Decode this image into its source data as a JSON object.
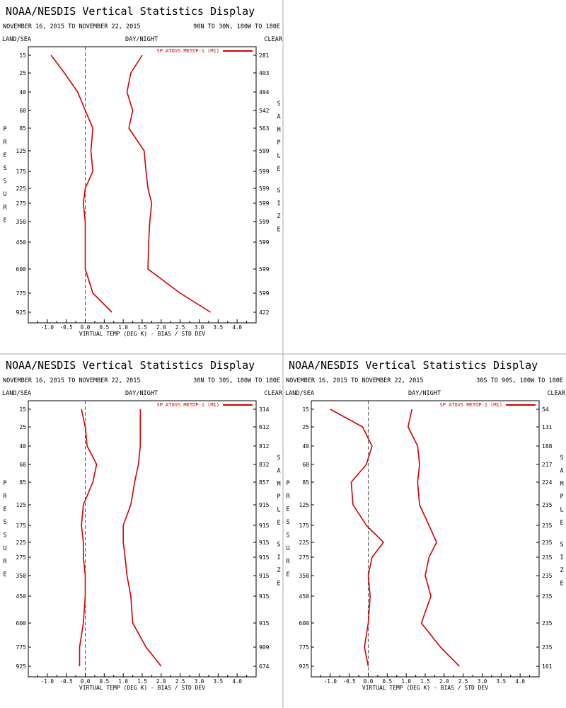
{
  "chart_data": [
    {
      "type": "line",
      "title": "NOAA/NESDIS Vertical Statistics Display",
      "date_range": "NOVEMBER 16, 2015 TO NOVEMBER 22, 2015",
      "region": "90N TO 30N, 180W TO 180E",
      "corner_labels": {
        "left": "LAND/SEA",
        "center": "DAY/NIGHT",
        "right": "CLEAR"
      },
      "left_axis_label": "PRESSURE",
      "right_axis_label": "SAMPLE SIZE",
      "xlabel": "VIRTUAL TEMP (DEG K) - BIAS / STD DEV",
      "xlim": [
        -1.5,
        4.5
      ],
      "xticks": [
        "-1.0",
        "-0.5",
        "0.0",
        "0.5",
        "1.0",
        "1.5",
        "2.0",
        "2.5",
        "3.0",
        "3.5",
        "4.0"
      ],
      "legend": "SP ATOVS METOP-1 (M1)",
      "legend_position": "top-right",
      "line_color": "#d40000",
      "pressure_levels": [
        "15",
        "25",
        "40",
        "60",
        "85",
        "125",
        "175",
        "225",
        "275",
        "350",
        "450",
        "600",
        "775",
        "925"
      ],
      "sample_size": [
        "281",
        "403",
        "494",
        "542",
        "563",
        "599",
        "599",
        "599",
        "599",
        "599",
        "599",
        "599",
        "599",
        "422"
      ],
      "series": [
        {
          "values": [
            -0.9,
            -0.55,
            -0.2,
            0.0,
            0.2,
            0.15,
            0.2,
            0.0,
            -0.05,
            0.0,
            0.0,
            0.0,
            0.2,
            0.7
          ]
        },
        {
          "values": [
            1.5,
            1.2,
            1.1,
            1.25,
            1.15,
            1.55,
            1.6,
            1.65,
            1.75,
            1.7,
            1.67,
            1.65,
            2.5,
            3.3
          ]
        }
      ]
    },
    {
      "type": "line",
      "title": "NOAA/NESDIS Vertical Statistics Display",
      "date_range": "NOVEMBER 16, 2015 TO NOVEMBER 22, 2015",
      "region": "30N TO 30S, 180W TO 180E",
      "corner_labels": {
        "left": "LAND/SEA",
        "center": "DAY/NIGHT",
        "right": "CLEAR"
      },
      "left_axis_label": "PRESSURE",
      "right_axis_label": "SAMPLE SIZE",
      "xlabel": "VIRTUAL TEMP (DEG K) - BIAS / STD DEV",
      "xlim": [
        -1.5,
        4.5
      ],
      "xticks": [
        "-1.0",
        "-0.5",
        "0.0",
        "0.5",
        "1.0",
        "1.5",
        "2.0",
        "2.5",
        "3.0",
        "3.5",
        "4.0"
      ],
      "legend": "SP ATOVS METOP-1 (M1)",
      "legend_position": "top-right",
      "line_color": "#d40000",
      "pressure_levels": [
        "15",
        "25",
        "40",
        "60",
        "85",
        "125",
        "175",
        "225",
        "275",
        "350",
        "450",
        "600",
        "775",
        "925"
      ],
      "sample_size": [
        "314",
        "612",
        "812",
        "832",
        "857",
        "915",
        "915",
        "915",
        "915",
        "915",
        "915",
        "915",
        "909",
        "674"
      ],
      "series": [
        {
          "values": [
            -0.1,
            0.0,
            0.05,
            0.3,
            0.2,
            -0.05,
            -0.1,
            -0.05,
            -0.05,
            0.0,
            0.0,
            -0.05,
            -0.15,
            -0.15
          ]
        },
        {
          "values": [
            1.45,
            1.45,
            1.45,
            1.4,
            1.3,
            1.2,
            1.0,
            1.0,
            1.05,
            1.1,
            1.2,
            1.25,
            1.6,
            2.0
          ]
        }
      ]
    },
    {
      "type": "line",
      "title": "NOAA/NESDIS Vertical Statistics Display",
      "date_range": "NOVEMBER 16, 2015 TO NOVEMBER 22, 2015",
      "region": "30S TO 90S, 180W TO 180E",
      "corner_labels": {
        "left": "LAND/SEA",
        "center": "DAY/NIGHT",
        "right": "CLEAR"
      },
      "left_axis_label": "PRESSURE",
      "right_axis_label": "SAMPLE SIZE",
      "xlabel": "VIRTUAL TEMP (DEG K) - BIAS / STD DEV",
      "xlim": [
        -1.5,
        4.5
      ],
      "xticks": [
        "-1.0",
        "-0.5",
        "0.0",
        "0.5",
        "1.0",
        "1.5",
        "2.0",
        "2.5",
        "3.0",
        "3.5",
        "4.0"
      ],
      "legend": "SP ATOVS METOP-1 (M1)",
      "legend_position": "top-right",
      "line_color": "#d40000",
      "pressure_levels": [
        "15",
        "25",
        "40",
        "60",
        "85",
        "125",
        "175",
        "225",
        "275",
        "350",
        "450",
        "600",
        "775",
        "925"
      ],
      "sample_size": [
        "54",
        "131",
        "188",
        "217",
        "224",
        "235",
        "235",
        "235",
        "235",
        "235",
        "235",
        "235",
        "235",
        "161"
      ],
      "series": [
        {
          "values": [
            -1.0,
            -0.15,
            0.1,
            -0.05,
            -0.45,
            -0.4,
            -0.05,
            0.4,
            0.1,
            0.0,
            0.05,
            0.0,
            -0.1,
            0.0
          ]
        },
        {
          "values": [
            1.15,
            1.05,
            1.3,
            1.35,
            1.3,
            1.35,
            1.6,
            1.8,
            1.6,
            1.5,
            1.65,
            1.4,
            1.9,
            2.4
          ]
        }
      ]
    }
  ]
}
